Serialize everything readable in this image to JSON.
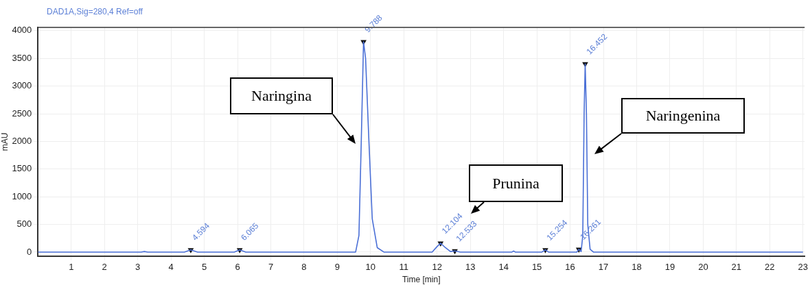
{
  "chart_data": {
    "type": "line",
    "title": "DAD1A,Sig=280,4  Ref=off",
    "xlabel": "Time [min]",
    "ylabel": "mAU",
    "series": [
      {
        "color": "#4a6fd6",
        "x": [
          0,
          3.1,
          3.2,
          3.3,
          4.4,
          4.594,
          4.8,
          5.9,
          6.065,
          6.25,
          9.55,
          9.65,
          9.72,
          9.788,
          9.85,
          9.95,
          10.05,
          10.2,
          10.4,
          11.85,
          12.0,
          12.104,
          12.25,
          12.4,
          12.533,
          12.7,
          14.25,
          14.3,
          14.35,
          15.15,
          15.254,
          15.35,
          16.2,
          16.261,
          16.33,
          16.38,
          16.42,
          16.452,
          16.49,
          16.53,
          16.6,
          16.7,
          23
        ],
        "values": [
          0,
          0,
          10,
          0,
          0,
          40,
          0,
          0,
          40,
          0,
          0,
          300,
          2000,
          3800,
          3500,
          2000,
          600,
          80,
          0,
          0,
          100,
          160,
          80,
          10,
          20,
          0,
          0,
          20,
          0,
          0,
          40,
          0,
          0,
          50,
          10,
          300,
          2500,
          3400,
          2500,
          500,
          50,
          0,
          0
        ]
      },
      {
        "type": "scatter",
        "marker": "triangle",
        "color": "#111111",
        "x": [
          4.594,
          6.065,
          9.788,
          12.104,
          12.533,
          15.254,
          16.261,
          16.452
        ],
        "values": [
          40,
          40,
          3800,
          160,
          20,
          40,
          50,
          3400
        ]
      }
    ],
    "xlim": [
      0,
      23.05
    ],
    "xticks": [
      1,
      2,
      3,
      4,
      5,
      6,
      7,
      8,
      9,
      10,
      11,
      12,
      13,
      14,
      15,
      16,
      17,
      18,
      19,
      20,
      21,
      22,
      23
    ],
    "ylim": [
      -75,
      4060
    ],
    "yticks": [
      0,
      500,
      1000,
      1500,
      2000,
      2500,
      3000,
      3500,
      4000
    ],
    "grid": true,
    "legend": false,
    "marker": "none",
    "line_style": "solid",
    "annotations": [
      {
        "text": "4.594",
        "x": 4.594,
        "y": 40
      },
      {
        "text": "6.065",
        "x": 6.065,
        "y": 40
      },
      {
        "text": "9.788",
        "x": 9.788,
        "y": 3800
      },
      {
        "text": "12.104",
        "x": 12.104,
        "y": 160
      },
      {
        "text": "12.533",
        "x": 12.533,
        "y": 20
      },
      {
        "text": "15.254",
        "x": 15.254,
        "y": 40
      },
      {
        "text": "16.261",
        "x": 16.261,
        "y": 50
      },
      {
        "text": "16.452",
        "x": 16.452,
        "y": 3400
      },
      "Naringina",
      "Prunina",
      "Naringenina"
    ]
  }
}
